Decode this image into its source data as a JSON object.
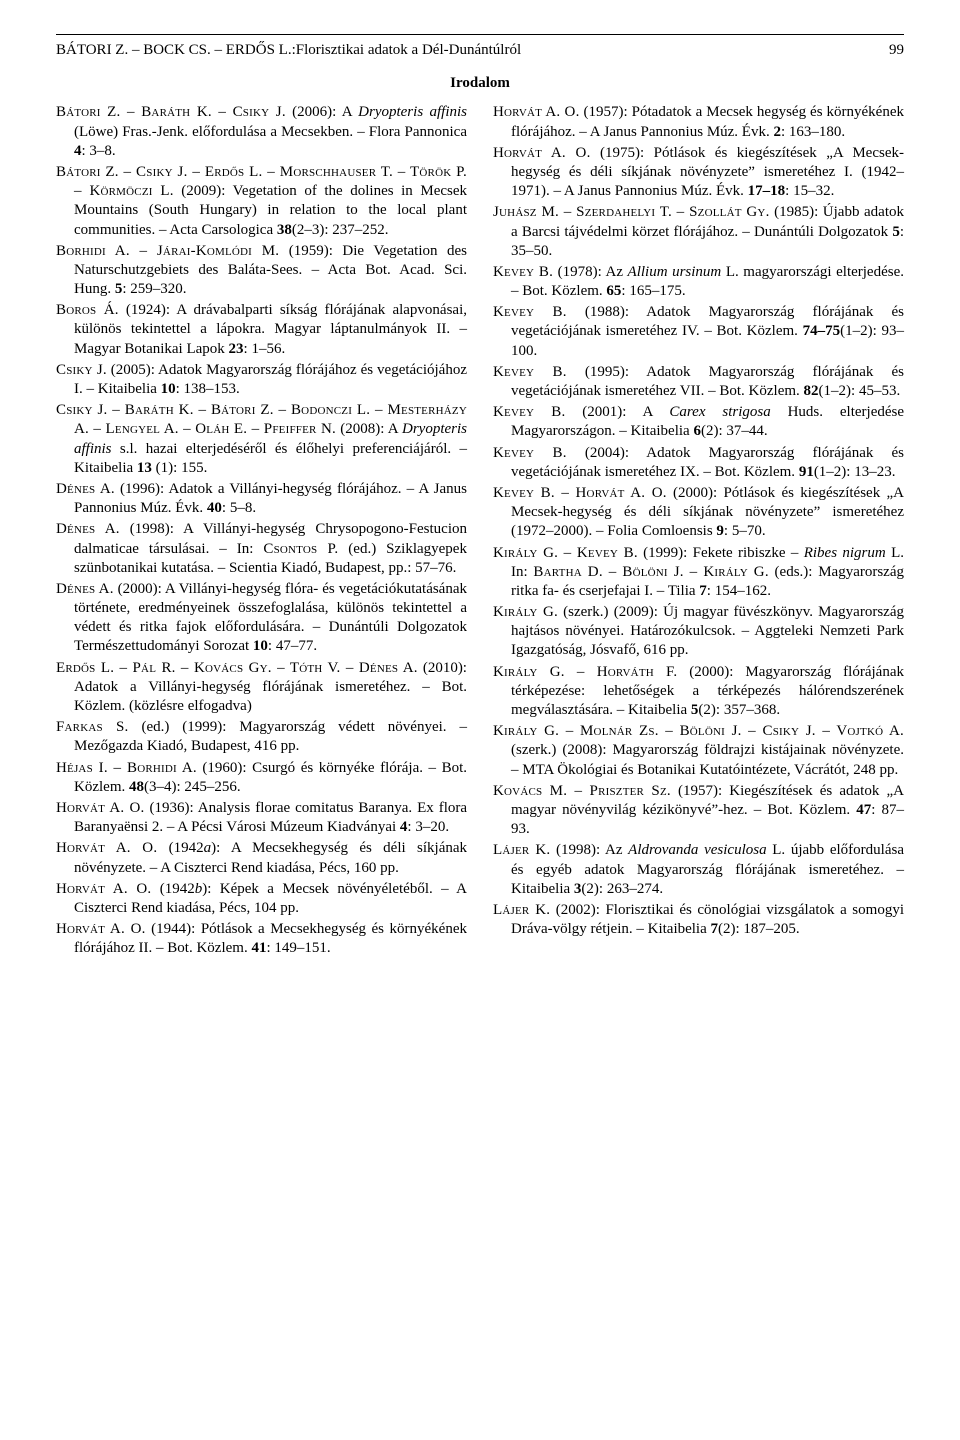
{
  "runhead": {
    "left": "BÁTORI Z. – BOCK CS. – ERDŐS L.:Florisztikai adatok a Dél-Dunántúlról",
    "pageno": "99"
  },
  "section_title": "Irodalom",
  "refs": [
    "<span class=\"sc\">Bátori Z. – Baráth K. – Csiky J.</span> (2006): A <em>Dryopteris affinis</em> (Löwe) Fras.-Jenk. előfordulása a Mecsekben. – Flora Pannonica <b>4</b>: 3–8.",
    "<span class=\"sc\">Bátori Z. – Csiky J. – Erdős L. – Morschhauser T. – Török P. – Körmöczi L.</span> (2009): Vegetation of the dolines in Mecsek Mountains (South Hungary) in relation to the local plant communities. – Acta Carsologica <b>38</b>(2–3): 237–252.",
    "<span class=\"sc\">Borhidi A. – Járai-Komlódi M.</span> (1959): Die Vegetation des Naturschutzgebiets des Baláta-Sees. – Acta Bot. Acad. Sci. Hung. <b>5</b>: 259–320.",
    "<span class=\"sc\">Boros Á.</span> (1924): A drávabalparti síkság flórájának alapvonásai, különös tekintettel a lápokra. Magyar láptanulmányok II. – Magyar Botanikai Lapok <b>23</b>: 1–56.",
    "<span class=\"sc\">Csiky J.</span> (2005): Adatok Magyarország flórájához és vegetációjához I. – Kitaibelia <b>10</b>: 138–153.",
    "<span class=\"sc\">Csiky J. – Baráth K. – Bátori Z. – Bodonczi L. – Mesterházy A. – Lengyel A. – Oláh E. – Pfeiffer N.</span> (2008): A <em>Dryopteris affinis</em> s.l. hazai elterjedéséről és élőhelyi preferenciájáról. – Kitaibelia <b>13</b> (1): 155.",
    "<span class=\"sc\">Dénes A.</span> (1996): Adatok a Villányi-hegység flórájához. – A Janus Pannonius Múz. Évk. <b>40</b>: 5–8.",
    "<span class=\"sc\">Dénes A.</span> (1998): A Villányi-hegység Chrysopogono-Festucion dalmaticae társulásai. – In: <span class=\"sc\">Csontos P.</span> (ed.) Sziklagyepek szünbotanikai kutatása. – Scientia Kiadó, Budapest, pp.: 57–76.",
    "<span class=\"sc\">Dénes A.</span> (2000): A Villányi-hegység flóra- és vegetációkutatásának története, eredményeinek összefoglalása, különös tekintettel a védett és ritka fajok előfordulására. – Dunántúli Dolgozatok Természettudományi Sorozat <b>10</b>: 47–77.",
    "<span class=\"sc\">Erdős L. – Pál R. – Kovács Gy. – Tóth V. – Dénes A.</span> (2010): Adatok a Villányi-hegység flórájának ismeretéhez. – Bot. Közlem. (közlésre elfogadva)",
    "<span class=\"sc\">Farkas S.</span> (ed.) (1999): Magyarország védett növényei. – Mezőgazda Kiadó, Budapest, 416 pp.",
    "<span class=\"sc\">Héjas I. – Borhidi A.</span> (1960): Csurgó és környéke flórája. – Bot. Közlem. <b>48</b>(3–4): 245–256.",
    "<span class=\"sc\">Horvát A. O.</span> (1936): Analysis florae comitatus Baranya. Ex flora Baranyaënsi 2. – A Pécsi Városi Múzeum Kiadványai <b>4</b>: 3–20.",
    "<span class=\"sc\">Horvát A. O.</span> (1942<em>a</em>): A Mecsekhegység és déli síkjának növényzete. – A Ciszterci Rend kiadása, Pécs, 160 pp.",
    "<span class=\"sc\">Horvát A. O.</span> (1942<em>b</em>): Képek a Mecsek növényéletéből. – A Ciszterci Rend kiadása, Pécs, 104 pp.",
    "<span class=\"sc\">Horvát A. O.</span> (1944): Pótlások a Mecsekhegység és környékének flórájához II. – Bot. Közlem. <b>41</b>: 149–151.",
    "<span class=\"sc\">Horvát A. O.</span> (1957): Pótadatok a Mecsek hegység és környékének flórájához. – A Janus Pannonius Múz. Évk. <b>2</b>: 163–180.",
    "<span class=\"sc\">Horvát A. O.</span> (1975): Pótlások és kiegészítések „A Mecsek-hegység és déli síkjának növényzete” ismeretéhez I. (1942–1971). – A Janus Pannonius Múz. Évk. <b>17–18</b>: 15–32.",
    "<span class=\"sc\">Juhász M. – Szerdahelyi T. – Szollát Gy.</span> (1985): Újabb adatok a Barcsi tájvédelmi körzet flórájához. – Dunántúli Dolgozatok <b>5</b>: 35–50.",
    "<span class=\"sc\">Kevey B.</span> (1978): Az <em>Allium ursinum</em> L. magyarországi elterjedése. – Bot. Közlem. <b>65</b>: 165–175.",
    "<span class=\"sc\">Kevey B.</span> (1988): Adatok Magyarország flórájának és vegetációjának ismeretéhez IV. – Bot. Közlem. <b>74–75</b>(1–2): 93–100.",
    "<span class=\"sc\">Kevey B.</span> (1995): Adatok Magyarország flórájának és vegetációjának ismeretéhez VII. – Bot. Közlem. <b>82</b>(1–2): 45–53.",
    "<span class=\"sc\">Kevey B.</span> (2001): A <em>Carex strigosa</em> Huds. elterjedése Magyarországon. – Kitaibelia <b>6</b>(2): 37–44.",
    "<span class=\"sc\">Kevey B.</span> (2004): Adatok Magyarország flórájának és vegetációjának ismeretéhez IX. – Bot. Közlem. <b>91</b>(1–2): 13–23.",
    "<span class=\"sc\">Kevey B. – Horvát A. O.</span> (2000): Pótlások és kiegészítések „A Mecsek-hegység és déli síkjának növényzete” ismeretéhez (1972–2000). – Folia Comloensis <b>9</b>: 5–70.",
    "<span class=\"sc\">Király G. – Kevey B.</span> (1999): Fekete ribiszke – <em>Ribes nigrum</em> L. In: <span class=\"sc\">Bartha D. – Bölöni J. – Király G.</span> (eds.): Magyarország ritka fa- és cserjefajai I. – Tilia <b>7</b>: 154–162.",
    "<span class=\"sc\">Király G.</span> (szerk.) (2009): Új magyar füvészkönyv. Magyarország hajtásos növényei. Határozókulcsok. – Aggteleki Nemzeti Park Igazgatóság, Jósvafő, 616 pp.",
    "<span class=\"sc\">Király G. – Horváth F.</span> (2000): Magyarország flórájának térképezése: lehetőségek a térképezés hálórendszerének megválasztására. – Kitaibelia <b>5</b>(2): 357–368.",
    "<span class=\"sc\">Király G. – Molnár Zs. – Bölöni J. – Csiky J. – Vojtkó A.</span> (szerk.) (2008): Magyarország földrajzi kistájainak növényzete. – MTA Ökológiai és Botanikai Kutatóintézete, Vácrátót, 248 pp.",
    "<span class=\"sc\">Kovács M. – Priszter Sz.</span> (1957): Kiegészítések és adatok „A magyar növényvilág kézikönyvé”-hez. – Bot. Közlem. <b>47</b>: 87–93.",
    "<span class=\"sc\">Lájer K.</span> (1998): Az <em>Aldrovanda vesiculosa</em> L. újabb előfordulása és egyéb adatok Magyarország flórájának ismeretéhez. – Kitaibelia <b>3</b>(2): 263–274.",
    "<span class=\"sc\">Lájer K.</span> (2002): Florisztikai és cönológiai vizsgálatok a somogyi Dráva-völgy rétjein. – Kitaibelia <b>7</b>(2): 187–205."
  ]
}
